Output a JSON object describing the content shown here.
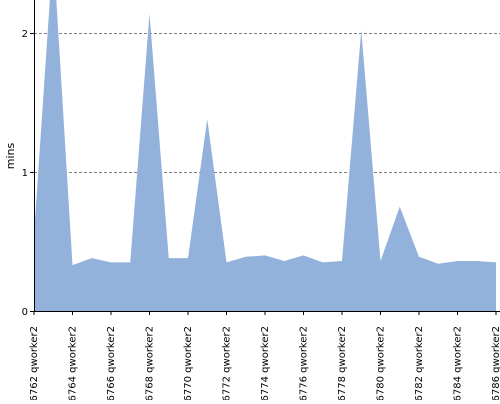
{
  "chart_data": {
    "type": "area",
    "title": "",
    "xlabel": "",
    "ylabel": "mins",
    "ylim": [
      0,
      2.0
    ],
    "yticks": [
      0,
      1,
      2
    ],
    "grid": "y-dashed",
    "colors": {
      "area": "#92b2dc",
      "grid": "#808080",
      "axis": "#000000"
    },
    "x": [
      6762,
      6763,
      6764,
      6765,
      6766,
      6767,
      6768,
      6769,
      6770,
      6771,
      6772,
      6773,
      6774,
      6775,
      6776,
      6777,
      6778,
      6779,
      6780,
      6781,
      6782,
      6783,
      6784,
      6785,
      6786
    ],
    "xtick_labels": [
      "#6762 qworker2",
      "#6764 qworker2",
      "#6766 qworker2",
      "#6768 qworker2",
      "#6770 qworker2",
      "#6772 qworker2",
      "#6774 qworker2",
      "#6776 qworker2",
      "#6778 qworker2",
      "#6780 qworker2",
      "#6782 qworker2",
      "#6784 qworker2",
      "#6786 qworker2"
    ],
    "series": [
      {
        "values": [
          0.55,
          2.6,
          0.33,
          0.38,
          0.35,
          0.35,
          2.14,
          0.38,
          0.38,
          1.38,
          0.35,
          0.39,
          0.4,
          0.36,
          0.4,
          0.35,
          0.36,
          2.02,
          0.36,
          0.75,
          0.39,
          0.34,
          0.36,
          0.36,
          0.35
        ]
      }
    ]
  }
}
